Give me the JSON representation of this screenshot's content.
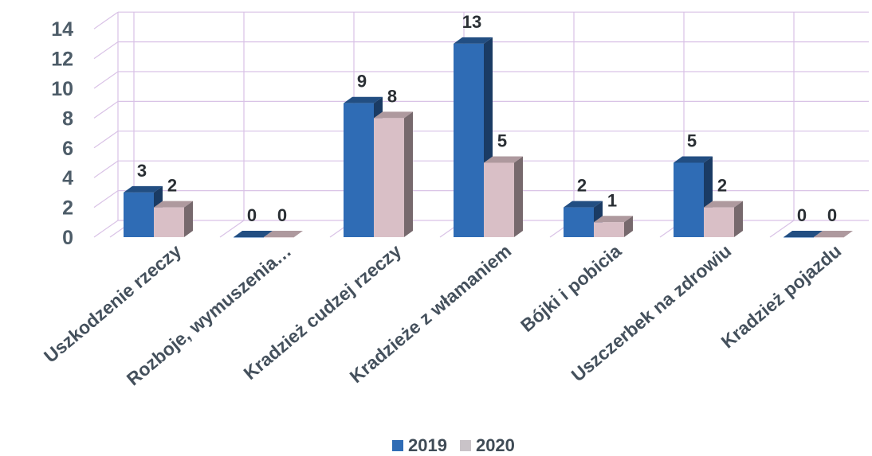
{
  "chart_data": {
    "type": "bar",
    "categories": [
      "Uszkodzenie rzeczy",
      "Rozboje, wymuszenia…",
      "Kradzież cudzej rzeczy",
      "Kradzieże z włamaniem",
      "Bójki i pobicia",
      "Uszczerbek na zdrowiu",
      "Kradzież pojazdu"
    ],
    "series": [
      {
        "name": "2019",
        "values": [
          3,
          0,
          9,
          13,
          2,
          5,
          0
        ],
        "color": "#2f6cb5"
      },
      {
        "name": "2020",
        "values": [
          2,
          0,
          8,
          5,
          1,
          2,
          0
        ],
        "color": "#d9bfc6"
      }
    ],
    "y_ticks": [
      "0",
      "2",
      "4",
      "6",
      "8",
      "10",
      "12",
      "14"
    ],
    "ylim": [
      0,
      14
    ],
    "grid": true,
    "legend_position": "bottom",
    "style": "3d-column",
    "gridline_color": "#d9c2e6"
  }
}
